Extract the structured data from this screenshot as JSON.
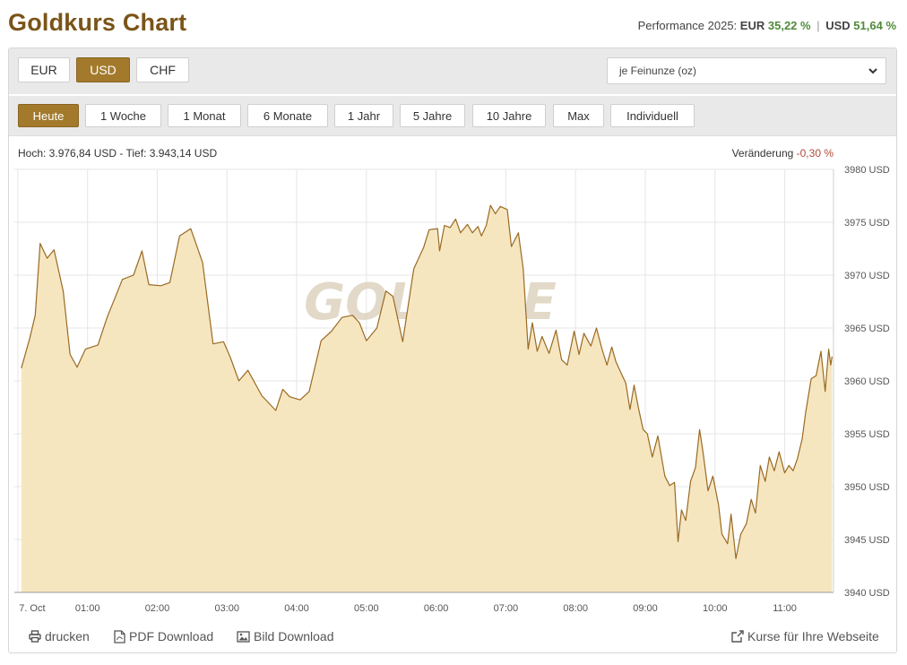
{
  "header": {
    "title": "Goldkurs Chart",
    "performance_label": "Performance 2025:",
    "eur_label": "EUR",
    "eur_value": "35,22 %",
    "separator": "|",
    "usd_label": "USD",
    "usd_value": "51,64 %"
  },
  "currency_tabs": [
    {
      "label": "EUR",
      "active": false
    },
    {
      "label": "USD",
      "active": true
    },
    {
      "label": "CHF",
      "active": false
    }
  ],
  "unit_select": {
    "value": "je Feinunze (oz)"
  },
  "range_tabs": [
    {
      "label": "Heute",
      "active": true
    },
    {
      "label": "1 Woche",
      "active": false
    },
    {
      "label": "1 Monat",
      "active": false
    },
    {
      "label": "6 Monate",
      "active": false
    },
    {
      "label": "1 Jahr",
      "active": false
    },
    {
      "label": "5 Jahre",
      "active": false
    },
    {
      "label": "10 Jahre",
      "active": false
    },
    {
      "label": "Max",
      "active": false
    },
    {
      "label": "Individuell",
      "active": false
    }
  ],
  "stats": {
    "high_low": "Hoch: 3.976,84 USD - Tief: 3.943,14 USD",
    "change_label": "Veränderung",
    "change_value": "-0,30 %"
  },
  "watermark": "GOLD.DE",
  "colors": {
    "accent": "#a37a2c",
    "title": "#7a5418",
    "line": "#9a6a22",
    "fill": "#f6e6c0",
    "positive": "#4f8a3a",
    "negative": "#b04a3a"
  },
  "chart_data": {
    "type": "area",
    "x_unit": "hours since 00:00 on 7. Oct",
    "x_ticks": [
      {
        "v": 0,
        "label": "7. Oct"
      },
      {
        "v": 1,
        "label": "01:00"
      },
      {
        "v": 2,
        "label": "02:00"
      },
      {
        "v": 3,
        "label": "03:00"
      },
      {
        "v": 4,
        "label": "04:00"
      },
      {
        "v": 5,
        "label": "05:00"
      },
      {
        "v": 6,
        "label": "06:00"
      },
      {
        "v": 7,
        "label": "07:00"
      },
      {
        "v": 8,
        "label": "08:00"
      },
      {
        "v": 9,
        "label": "09:00"
      },
      {
        "v": 10,
        "label": "10:00"
      },
      {
        "v": 11,
        "label": "11:00"
      }
    ],
    "y_ticks": [
      {
        "v": 3940,
        "label": "3940 USD"
      },
      {
        "v": 3945,
        "label": "3945 USD"
      },
      {
        "v": 3950,
        "label": "3950 USD"
      },
      {
        "v": 3955,
        "label": "3955 USD"
      },
      {
        "v": 3960,
        "label": "3960 USD"
      },
      {
        "v": 3965,
        "label": "3965 USD"
      },
      {
        "v": 3970,
        "label": "3970 USD"
      },
      {
        "v": 3975,
        "label": "3975 USD"
      },
      {
        "v": 3980,
        "label": "3980 USD"
      }
    ],
    "xlim": [
      -0.05,
      11.7
    ],
    "ylim": [
      3940,
      3980
    ],
    "grid": true,
    "series": [
      {
        "name": "",
        "points": [
          [
            0.05,
            3961.2
          ],
          [
            0.17,
            3964.0
          ],
          [
            0.25,
            3966.2
          ],
          [
            0.32,
            3973.0
          ],
          [
            0.42,
            3971.6
          ],
          [
            0.52,
            3972.4
          ],
          [
            0.65,
            3968.5
          ],
          [
            0.75,
            3962.5
          ],
          [
            0.85,
            3961.3
          ],
          [
            0.97,
            3963.0
          ],
          [
            1.15,
            3963.4
          ],
          [
            1.28,
            3966.0
          ],
          [
            1.5,
            3969.6
          ],
          [
            1.66,
            3970.0
          ],
          [
            1.78,
            3972.3
          ],
          [
            1.88,
            3969.1
          ],
          [
            2.05,
            3969.0
          ],
          [
            2.18,
            3969.3
          ],
          [
            2.32,
            3973.7
          ],
          [
            2.48,
            3974.4
          ],
          [
            2.65,
            3971.2
          ],
          [
            2.8,
            3963.5
          ],
          [
            2.95,
            3963.7
          ],
          [
            3.05,
            3962.2
          ],
          [
            3.17,
            3960.0
          ],
          [
            3.3,
            3961.0
          ],
          [
            3.5,
            3958.6
          ],
          [
            3.7,
            3957.2
          ],
          [
            3.8,
            3959.2
          ],
          [
            3.9,
            3958.5
          ],
          [
            4.05,
            3958.2
          ],
          [
            4.18,
            3959.0
          ],
          [
            4.35,
            3963.8
          ],
          [
            4.5,
            3964.7
          ],
          [
            4.65,
            3966.0
          ],
          [
            4.8,
            3966.2
          ],
          [
            4.9,
            3965.5
          ],
          [
            5.0,
            3963.8
          ],
          [
            5.15,
            3965.0
          ],
          [
            5.28,
            3968.5
          ],
          [
            5.38,
            3968.0
          ],
          [
            5.52,
            3963.7
          ],
          [
            5.68,
            3970.6
          ],
          [
            5.82,
            3972.6
          ],
          [
            5.9,
            3974.3
          ],
          [
            6.02,
            3974.4
          ],
          [
            6.05,
            3972.3
          ],
          [
            6.12,
            3974.7
          ],
          [
            6.2,
            3974.5
          ],
          [
            6.28,
            3975.3
          ],
          [
            6.35,
            3974.0
          ],
          [
            6.45,
            3974.8
          ],
          [
            6.52,
            3974.0
          ],
          [
            6.6,
            3974.6
          ],
          [
            6.65,
            3973.7
          ],
          [
            6.72,
            3974.7
          ],
          [
            6.78,
            3976.6
          ],
          [
            6.85,
            3975.8
          ],
          [
            6.92,
            3976.5
          ],
          [
            7.02,
            3976.2
          ],
          [
            7.08,
            3972.7
          ],
          [
            7.18,
            3974.0
          ],
          [
            7.25,
            3970.6
          ],
          [
            7.32,
            3963.0
          ],
          [
            7.38,
            3965.5
          ],
          [
            7.45,
            3962.8
          ],
          [
            7.52,
            3964.2
          ],
          [
            7.62,
            3962.6
          ],
          [
            7.72,
            3964.8
          ],
          [
            7.8,
            3962.0
          ],
          [
            7.88,
            3961.5
          ],
          [
            7.98,
            3964.7
          ],
          [
            8.05,
            3962.5
          ],
          [
            8.12,
            3964.5
          ],
          [
            8.22,
            3963.3
          ],
          [
            8.3,
            3965.0
          ],
          [
            8.38,
            3963.0
          ],
          [
            8.45,
            3961.5
          ],
          [
            8.52,
            3963.2
          ],
          [
            8.58,
            3961.8
          ],
          [
            8.65,
            3960.8
          ],
          [
            8.72,
            3959.8
          ],
          [
            8.78,
            3957.3
          ],
          [
            8.84,
            3959.6
          ],
          [
            8.9,
            3957.5
          ],
          [
            8.97,
            3955.4
          ],
          [
            9.03,
            3955.0
          ],
          [
            9.1,
            3952.8
          ],
          [
            9.18,
            3954.8
          ],
          [
            9.28,
            3951.0
          ],
          [
            9.35,
            3950.1
          ],
          [
            9.42,
            3950.4
          ],
          [
            9.47,
            3944.8
          ],
          [
            9.52,
            3947.8
          ],
          [
            9.58,
            3946.8
          ],
          [
            9.65,
            3950.5
          ],
          [
            9.72,
            3951.8
          ],
          [
            9.78,
            3955.4
          ],
          [
            9.83,
            3953.2
          ],
          [
            9.9,
            3949.6
          ],
          [
            9.97,
            3951.0
          ],
          [
            10.05,
            3948.3
          ],
          [
            10.1,
            3945.5
          ],
          [
            10.18,
            3944.6
          ],
          [
            10.23,
            3947.4
          ],
          [
            10.3,
            3943.2
          ],
          [
            10.37,
            3945.5
          ],
          [
            10.45,
            3946.5
          ],
          [
            10.52,
            3948.8
          ],
          [
            10.58,
            3947.5
          ],
          [
            10.65,
            3952.0
          ],
          [
            10.72,
            3950.5
          ],
          [
            10.78,
            3952.8
          ],
          [
            10.85,
            3951.5
          ],
          [
            10.92,
            3953.3
          ],
          [
            11.0,
            3951.3
          ],
          [
            11.06,
            3952.0
          ],
          [
            11.12,
            3951.5
          ],
          [
            11.18,
            3952.6
          ],
          [
            11.25,
            3954.5
          ],
          [
            11.3,
            3957.0
          ],
          [
            11.38,
            3960.2
          ],
          [
            11.45,
            3960.5
          ],
          [
            11.52,
            3962.8
          ],
          [
            11.58,
            3959.0
          ],
          [
            11.63,
            3963.0
          ],
          [
            11.66,
            3961.5
          ],
          [
            11.68,
            3962.3
          ]
        ]
      }
    ]
  },
  "footer": {
    "print_label": "drucken",
    "pdf_label": "PDF Download",
    "image_label": "Bild Download",
    "embed_label": "Kurse für Ihre Webseite"
  }
}
